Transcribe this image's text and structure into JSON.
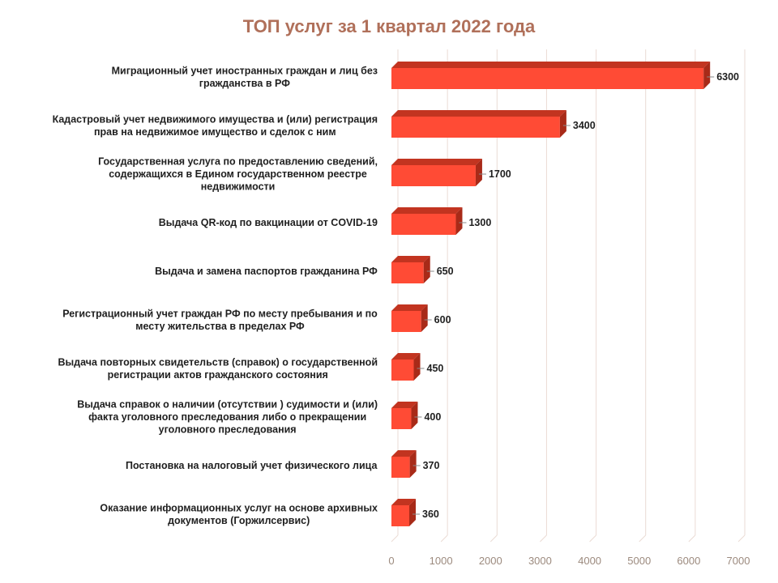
{
  "chart_data": {
    "type": "bar",
    "orientation": "horizontal",
    "title": "ТОП услуг за 1 квартал 2022 года",
    "categories": [
      [
        "Миграционный учет иностранных граждан и лиц без",
        "гражданства в РФ"
      ],
      [
        "Кадастровый учет недвижимого имущества и (или)  регистрация",
        "прав на недвижимое имущество и сделок с ним"
      ],
      [
        "Государственная услуга по предоставлению сведений,",
        "содержащихся в Едином государственном реестре",
        "недвижимости"
      ],
      [
        "Выдача QR-код по вакцинации от COVID-19"
      ],
      [
        "Выдача и замена паспортов гражданина РФ"
      ],
      [
        "Регистрационный учет граждан РФ по месту пребывания и по",
        "месту жительства в пределах РФ"
      ],
      [
        "Выдача повторных свидетельств (справок) о государственной",
        "регистрации актов гражданского состояния"
      ],
      [
        "Выдача справок о наличии (отсутствии ) судимости и (или)",
        "факта  уголовного преследования либо о прекращении",
        "уголовного преследования"
      ],
      [
        "Постановка на налоговый учет физического лица"
      ],
      [
        "Оказание информационных услуг на основе архивных",
        "документов (Горжилсервис)"
      ]
    ],
    "values": [
      6300,
      3400,
      1700,
      1300,
      650,
      600,
      450,
      400,
      370,
      360
    ],
    "xlim": [
      0,
      7000
    ],
    "xticks": [
      0,
      1000,
      2000,
      3000,
      4000,
      5000,
      6000,
      7000
    ],
    "grid": true,
    "legend": "none",
    "colors": {
      "bar_front": "#FF4B35",
      "bar_top": "#C23420",
      "bar_side": "#A82A18",
      "title": "#B0705A",
      "grid": "#EADBD4",
      "tick": "#9C8A7E"
    }
  }
}
